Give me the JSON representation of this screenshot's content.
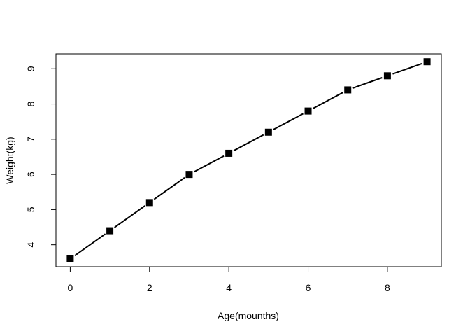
{
  "chart_data": {
    "type": "line",
    "title": "",
    "xlabel": "Age(mounths)",
    "ylabel": "Weight(kg)",
    "xlim": [
      -0.36,
      9.36
    ],
    "ylim": [
      3.377,
      9.423
    ],
    "x_ticks": [
      0,
      2,
      4,
      6,
      8
    ],
    "x_tick_labels": [
      "0",
      "2",
      "4",
      "6",
      "8"
    ],
    "y_ticks": [
      4,
      5,
      6,
      7,
      8,
      9
    ],
    "y_tick_labels": [
      "4",
      "5",
      "6",
      "7",
      "8",
      "9"
    ],
    "series": [
      {
        "name": "Weight",
        "marker": "square",
        "color": "#000000",
        "x": [
          0,
          1,
          2,
          3,
          4,
          5,
          6,
          7,
          8,
          9
        ],
        "values": [
          3.6,
          4.4,
          5.2,
          6.0,
          6.6,
          7.2,
          7.8,
          8.4,
          8.8,
          9.2
        ]
      }
    ],
    "grid": false,
    "legend": "none"
  }
}
